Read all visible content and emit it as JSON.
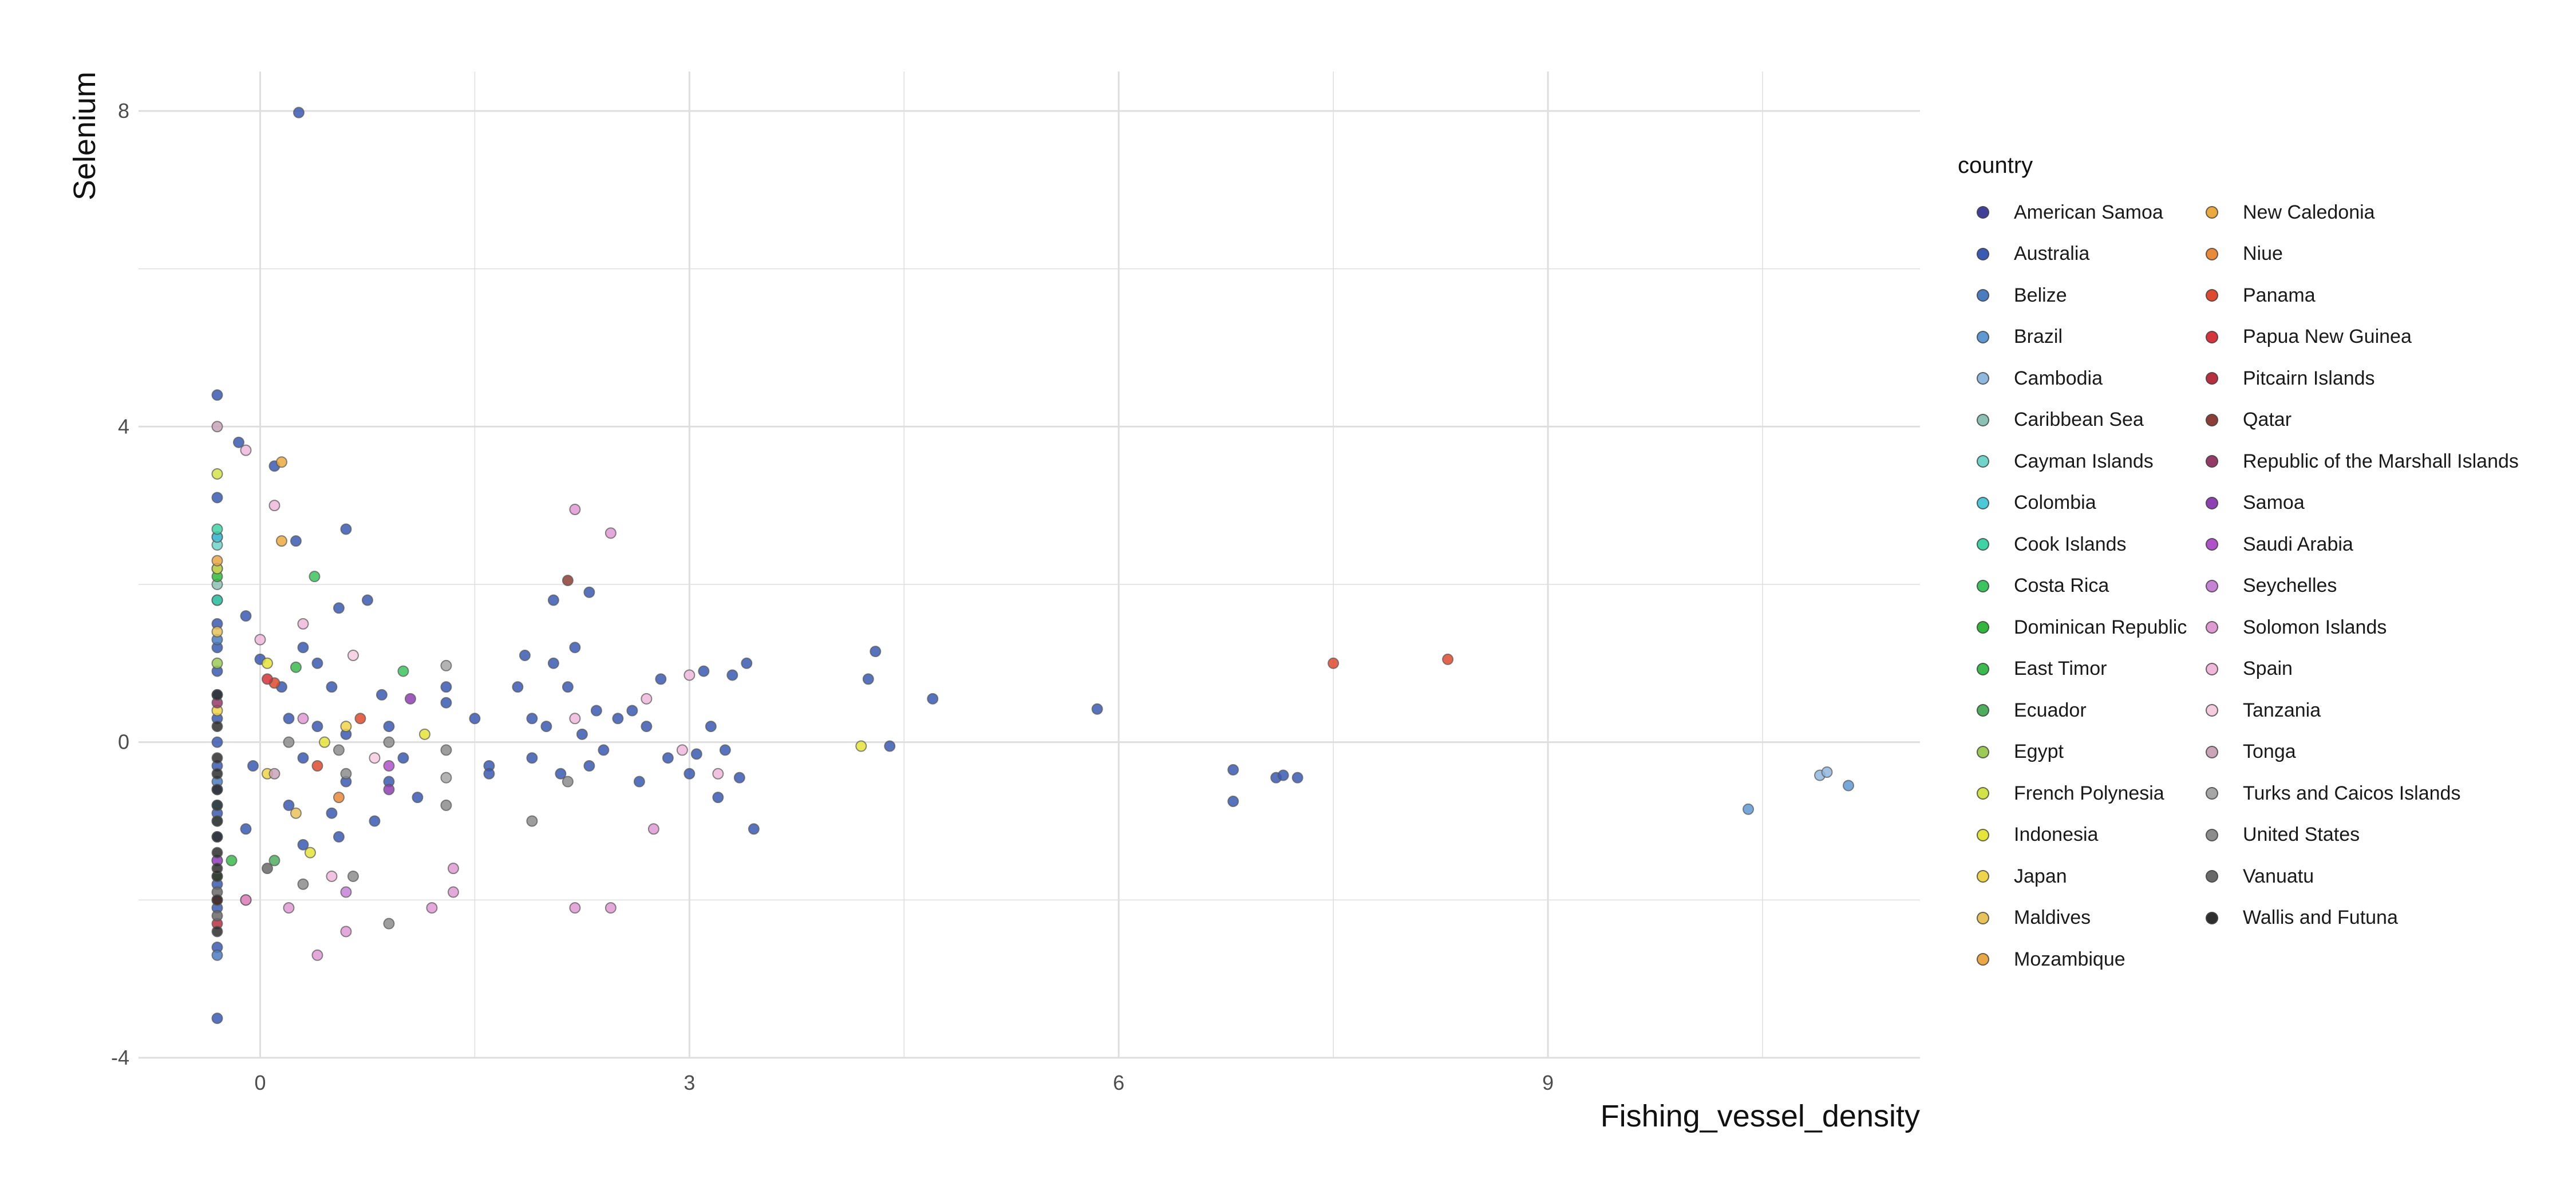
{
  "chart_data": {
    "type": "scatter",
    "title": "",
    "xlabel": "Fishing_vessel_density",
    "ylabel": "Selenium",
    "xlim": [
      -0.85,
      11.6
    ],
    "ylim": [
      -4.0,
      8.5
    ],
    "x_ticks": [
      0,
      3,
      6,
      9
    ],
    "y_ticks": [
      -4,
      0,
      4,
      8
    ],
    "grid": true,
    "legend_title": "country",
    "legend_placement": "right",
    "series": [
      {
        "name": "American Samoa",
        "color": "#3F3F9A",
        "points": []
      },
      {
        "name": "Australia",
        "color": "#3A5BB3",
        "points": [
          [
            0.27,
            7.98
          ],
          [
            -0.3,
            4.4
          ],
          [
            -0.3,
            3.1
          ],
          [
            -0.3,
            2.6
          ],
          [
            -0.3,
            2.2
          ],
          [
            -0.3,
            1.8
          ],
          [
            -0.3,
            1.5
          ],
          [
            -0.3,
            1.2
          ],
          [
            -0.3,
            0.9
          ],
          [
            -0.3,
            0.6
          ],
          [
            -0.3,
            0.3
          ],
          [
            -0.3,
            0.0
          ],
          [
            -0.3,
            -0.3
          ],
          [
            -0.3,
            -0.6
          ],
          [
            -0.3,
            -0.9
          ],
          [
            -0.3,
            -1.2
          ],
          [
            -0.3,
            -1.5
          ],
          [
            -0.3,
            -1.8
          ],
          [
            -0.3,
            -2.1
          ],
          [
            -0.3,
            -2.6
          ],
          [
            -0.3,
            -3.5
          ],
          [
            -0.15,
            3.8
          ],
          [
            0.1,
            3.5
          ],
          [
            0.25,
            2.55
          ],
          [
            0.6,
            2.7
          ],
          [
            0.55,
            1.7
          ],
          [
            0.75,
            1.8
          ],
          [
            0.3,
            1.2
          ],
          [
            0.4,
            1.0
          ],
          [
            0.0,
            1.05
          ],
          [
            -0.1,
            1.6
          ],
          [
            0.15,
            0.7
          ],
          [
            0.5,
            0.7
          ],
          [
            0.85,
            0.6
          ],
          [
            0.2,
            0.3
          ],
          [
            0.4,
            0.2
          ],
          [
            0.6,
            0.1
          ],
          [
            0.9,
            0.2
          ],
          [
            -0.05,
            -0.3
          ],
          [
            0.3,
            -0.2
          ],
          [
            0.6,
            -0.5
          ],
          [
            0.9,
            -0.5
          ],
          [
            0.2,
            -0.8
          ],
          [
            0.5,
            -0.9
          ],
          [
            0.8,
            -1.0
          ],
          [
            -0.1,
            -1.1
          ],
          [
            0.3,
            -1.3
          ],
          [
            0.55,
            -1.2
          ],
          [
            1.0,
            -0.2
          ],
          [
            1.3,
            0.7
          ],
          [
            1.3,
            0.5
          ],
          [
            1.1,
            -0.7
          ],
          [
            1.5,
            0.3
          ],
          [
            1.6,
            -0.3
          ],
          [
            1.6,
            -0.4
          ],
          [
            1.8,
            0.7
          ],
          [
            1.85,
            1.1
          ],
          [
            1.9,
            0.3
          ],
          [
            1.9,
            -0.2
          ],
          [
            2.0,
            0.2
          ],
          [
            2.05,
            1.0
          ],
          [
            2.1,
            -0.4
          ],
          [
            2.15,
            0.7
          ],
          [
            2.2,
            1.2
          ],
          [
            2.25,
            0.1
          ],
          [
            2.3,
            -0.3
          ],
          [
            2.3,
            1.9
          ],
          [
            2.35,
            0.4
          ],
          [
            2.4,
            -0.1
          ],
          [
            2.5,
            0.3
          ],
          [
            2.6,
            0.4
          ],
          [
            2.65,
            -0.5
          ],
          [
            2.7,
            0.2
          ],
          [
            2.8,
            0.8
          ],
          [
            2.85,
            -0.2
          ],
          [
            3.0,
            -0.4
          ],
          [
            3.05,
            -0.15
          ],
          [
            3.1,
            0.9
          ],
          [
            3.15,
            0.2
          ],
          [
            3.2,
            -0.7
          ],
          [
            3.25,
            -0.1
          ],
          [
            3.3,
            0.85
          ],
          [
            3.35,
            -0.45
          ],
          [
            3.4,
            1.0
          ],
          [
            3.45,
            -1.1
          ],
          [
            2.05,
            1.8
          ],
          [
            4.25,
            0.8
          ],
          [
            4.3,
            1.15
          ],
          [
            4.4,
            -0.05
          ],
          [
            4.7,
            0.55
          ],
          [
            5.85,
            0.42
          ],
          [
            6.8,
            -0.35
          ],
          [
            6.8,
            -0.75
          ],
          [
            7.1,
            -0.45
          ],
          [
            7.15,
            -0.42
          ],
          [
            7.25,
            -0.45
          ]
        ]
      },
      {
        "name": "Belize",
        "color": "#4A7CC0",
        "points": [
          [
            -0.3,
            1.3
          ],
          [
            -0.3,
            -0.5
          ],
          [
            -0.3,
            -2.7
          ]
        ]
      },
      {
        "name": "Brazil",
        "color": "#5E99D3",
        "points": [
          [
            10.4,
            -0.85
          ],
          [
            11.1,
            -0.55
          ]
        ]
      },
      {
        "name": "Cambodia",
        "color": "#90B7DE",
        "points": [
          [
            10.9,
            -0.42
          ],
          [
            10.95,
            -0.38
          ]
        ]
      },
      {
        "name": "Caribbean Sea",
        "color": "#8DC1B5",
        "points": [
          [
            -0.3,
            2.0
          ],
          [
            -0.3,
            -1.0
          ]
        ]
      },
      {
        "name": "Cayman Islands",
        "color": "#6FD4C9",
        "points": [
          [
            -0.3,
            2.5
          ]
        ]
      },
      {
        "name": "Colombia",
        "color": "#4CC9D8",
        "points": [
          [
            -0.3,
            2.6
          ],
          [
            -0.3,
            -0.8
          ]
        ]
      },
      {
        "name": "Cook Islands",
        "color": "#3ED3A6",
        "points": [
          [
            -0.3,
            2.7
          ],
          [
            -0.3,
            1.8
          ]
        ]
      },
      {
        "name": "Costa Rica",
        "color": "#3CC45E",
        "points": [
          [
            0.38,
            2.1
          ],
          [
            1.0,
            0.9
          ]
        ]
      },
      {
        "name": "Dominican Republic",
        "color": "#31B83C",
        "points": [
          [
            -0.3,
            2.1
          ]
        ]
      },
      {
        "name": "East Timor",
        "color": "#3BBA4E",
        "points": [
          [
            0.25,
            0.95
          ],
          [
            -0.2,
            -1.5
          ]
        ]
      },
      {
        "name": "Ecuador",
        "color": "#4FAE5E",
        "points": [
          [
            -0.3,
            -1.7
          ],
          [
            0.1,
            -1.5
          ]
        ]
      },
      {
        "name": "Egypt",
        "color": "#9BCB54",
        "points": [
          [
            -0.3,
            1.0
          ]
        ]
      },
      {
        "name": "French Polynesia",
        "color": "#D2E347",
        "points": [
          [
            -0.3,
            3.4
          ],
          [
            -0.3,
            2.2
          ]
        ]
      },
      {
        "name": "Indonesia",
        "color": "#E4E43A",
        "points": [
          [
            4.2,
            -0.05
          ],
          [
            0.05,
            1.0
          ],
          [
            0.45,
            0.0
          ],
          [
            1.15,
            0.1
          ],
          [
            0.35,
            -1.4
          ]
        ]
      },
      {
        "name": "Japan",
        "color": "#EFD54A",
        "points": [
          [
            -0.3,
            0.4
          ],
          [
            0.05,
            -0.4
          ],
          [
            0.6,
            0.2
          ]
        ]
      },
      {
        "name": "Maldives",
        "color": "#E8C25B",
        "points": [
          [
            -0.3,
            1.4
          ],
          [
            0.25,
            -0.9
          ]
        ]
      },
      {
        "name": "Mozambique",
        "color": "#E9A745",
        "points": [
          [
            -0.3,
            2.3
          ]
        ]
      },
      {
        "name": "New Caledonia",
        "color": "#EBAA3F",
        "points": [
          [
            0.15,
            3.55
          ],
          [
            0.15,
            2.55
          ]
        ]
      },
      {
        "name": "Niue",
        "color": "#E98A3A",
        "points": [
          [
            0.55,
            -0.7
          ]
        ]
      },
      {
        "name": "Panama",
        "color": "#DE4A2E",
        "points": [
          [
            7.5,
            1.0
          ],
          [
            8.3,
            1.05
          ],
          [
            0.4,
            -0.3
          ],
          [
            0.7,
            0.3
          ],
          [
            0.1,
            0.75
          ]
        ]
      },
      {
        "name": "Papua New Guinea",
        "color": "#D4343A",
        "points": [
          [
            -0.3,
            -2.0
          ],
          [
            -0.1,
            -2.0
          ],
          [
            0.05,
            0.8
          ]
        ]
      },
      {
        "name": "Pitcairn Islands",
        "color": "#B8303F",
        "points": [
          [
            -0.3,
            -2.3
          ]
        ]
      },
      {
        "name": "Qatar",
        "color": "#8C3E36",
        "points": [
          [
            2.15,
            2.05
          ]
        ]
      },
      {
        "name": "Republic of the Marshall Islands",
        "color": "#953A67",
        "points": [
          [
            -0.3,
            0.5
          ]
        ]
      },
      {
        "name": "Samoa",
        "color": "#8F40B2",
        "points": [
          [
            0.9,
            -0.6
          ],
          [
            1.05,
            0.55
          ]
        ]
      },
      {
        "name": "Saudi Arabia",
        "color": "#B052C9",
        "points": [
          [
            -0.3,
            -1.5
          ],
          [
            0.9,
            -0.3
          ]
        ]
      },
      {
        "name": "Seychelles",
        "color": "#C782D6",
        "points": [
          [
            0.6,
            -1.9
          ]
        ]
      },
      {
        "name": "Solomon Islands",
        "color": "#E199D3",
        "points": [
          [
            2.2,
            2.95
          ],
          [
            2.45,
            2.65
          ],
          [
            0.2,
            -2.1
          ],
          [
            0.4,
            -2.7
          ],
          [
            0.6,
            -2.4
          ],
          [
            1.35,
            -1.6
          ],
          [
            1.35,
            -1.9
          ],
          [
            2.2,
            -2.1
          ],
          [
            2.45,
            -2.1
          ],
          [
            -0.1,
            -2.0
          ],
          [
            1.2,
            -2.1
          ],
          [
            2.75,
            -1.1
          ],
          [
            0.3,
            0.3
          ]
        ]
      },
      {
        "name": "Spain",
        "color": "#F0B8DA",
        "points": [
          [
            -0.1,
            3.7
          ],
          [
            0.1,
            3.0
          ],
          [
            0.3,
            1.5
          ],
          [
            0.0,
            1.3
          ],
          [
            2.2,
            0.3
          ],
          [
            2.7,
            0.55
          ],
          [
            2.95,
            -0.1
          ],
          [
            3.0,
            0.85
          ],
          [
            3.2,
            -0.4
          ],
          [
            0.5,
            -1.7
          ]
        ]
      },
      {
        "name": "Tanzania",
        "color": "#F4CCDE",
        "points": [
          [
            0.65,
            1.1
          ],
          [
            0.8,
            -0.2
          ]
        ]
      },
      {
        "name": "Tonga",
        "color": "#C9A5B7",
        "points": [
          [
            -0.3,
            4.0
          ],
          [
            0.1,
            -0.4
          ]
        ]
      },
      {
        "name": "Turks and Caicos Islands",
        "color": "#A6A6A6",
        "points": [
          [
            1.3,
            0.97
          ],
          [
            1.3,
            -0.45
          ]
        ]
      },
      {
        "name": "United States",
        "color": "#8C8C8C",
        "points": [
          [
            1.3,
            -0.8
          ],
          [
            1.3,
            -0.1
          ],
          [
            1.9,
            -1.0
          ],
          [
            2.15,
            -0.5
          ],
          [
            0.65,
            -1.7
          ],
          [
            0.9,
            -2.3
          ],
          [
            0.3,
            -1.8
          ],
          [
            0.6,
            -0.4
          ],
          [
            0.9,
            0.0
          ],
          [
            0.2,
            0.0
          ],
          [
            0.55,
            -0.1
          ]
        ]
      },
      {
        "name": "Vanuatu",
        "color": "#696969",
        "points": [
          [
            -0.3,
            -2.2
          ],
          [
            -0.3,
            -1.9
          ],
          [
            0.05,
            -1.6
          ]
        ]
      },
      {
        "name": "Wallis and Futuna",
        "color": "#2E2E2E",
        "points": [
          [
            -0.3,
            -0.2
          ],
          [
            -0.3,
            -0.6
          ],
          [
            -0.3,
            -1.0
          ],
          [
            -0.3,
            -1.4
          ],
          [
            -0.3,
            -1.7
          ],
          [
            -0.3,
            -2.0
          ],
          [
            -0.3,
            0.2
          ],
          [
            -0.3,
            -0.4
          ],
          [
            -0.3,
            -0.8
          ],
          [
            -0.3,
            -1.2
          ],
          [
            -0.3,
            -1.6
          ],
          [
            -0.3,
            0.6
          ],
          [
            -0.3,
            -2.4
          ]
        ]
      }
    ]
  }
}
